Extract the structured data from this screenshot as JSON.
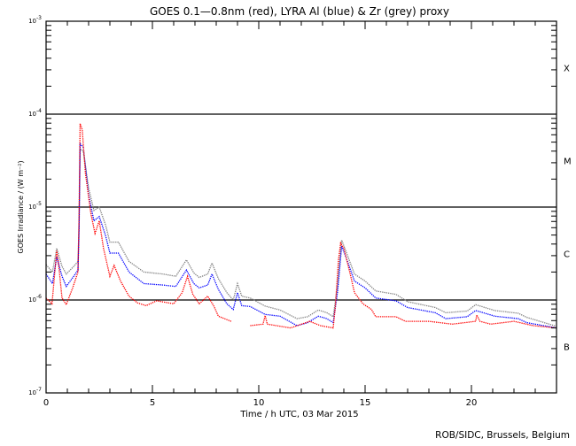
{
  "chart_data": {
    "type": "line",
    "title": "GOES 0.1—0.8nm (red), LYRA Al (blue) & Zr (grey) proxy",
    "xlabel": "Time / h UTC, 03 Mar 2015",
    "ylabel": "GOES Irradiance / (W m⁻²)",
    "xlim": [
      0,
      24
    ],
    "ylim": [
      1e-07,
      0.001
    ],
    "yscale": "log",
    "x_ticks": [
      0,
      5,
      10,
      15,
      20
    ],
    "x_tick_labels": [
      "0",
      "5",
      "10",
      "15",
      "20"
    ],
    "y_ticks": [
      {
        "base": "10",
        "exp": "-3"
      },
      {
        "base": "10",
        "exp": "-4"
      },
      {
        "base": "10",
        "exp": "-5"
      },
      {
        "base": "10",
        "exp": "-6"
      },
      {
        "base": "10",
        "exp": "-7"
      }
    ],
    "reference_lines": [
      0.0001,
      1e-05,
      1e-06
    ],
    "flare_classes": [
      {
        "label": "X",
        "value": 0.000316
      },
      {
        "label": "M",
        "value": 3.16e-05
      },
      {
        "label": "C",
        "value": 3.16e-06
      },
      {
        "label": "B",
        "value": 3.16e-07
      }
    ],
    "series": [
      {
        "name": "GOES 0.1-0.8nm",
        "color": "#ff0000",
        "segments": [
          [
            [
              0,
              1.05e-06
            ],
            [
              0.28,
              9.1e-07
            ],
            [
              0.5,
              3.4e-06
            ],
            [
              0.6,
              2.3e-06
            ],
            [
              0.75,
              1.05e-06
            ],
            [
              0.95,
              8.9e-07
            ],
            [
              1.25,
              1.35e-06
            ],
            [
              1.5,
              2e-06
            ],
            [
              1.55,
              7.6e-06
            ],
            [
              1.6,
              7.9e-05
            ],
            [
              1.7,
              6.8e-05
            ],
            [
              1.85,
              2.3e-05
            ],
            [
              2.1,
              8.7e-06
            ],
            [
              2.3,
              5.2e-06
            ],
            [
              2.5,
              7.1e-06
            ],
            [
              2.7,
              3.6e-06
            ],
            [
              3.0,
              1.8e-06
            ],
            [
              3.2,
              2.35e-06
            ],
            [
              3.5,
              1.6e-06
            ],
            [
              3.9,
              1.1e-06
            ],
            [
              4.3,
              9.3e-07
            ],
            [
              4.7,
              8.7e-07
            ],
            [
              5.2,
              9.8e-07
            ],
            [
              6.0,
              9.1e-07
            ],
            [
              6.4,
              1.2e-06
            ],
            [
              6.65,
              1.8e-06
            ],
            [
              6.9,
              1.15e-06
            ],
            [
              7.2,
              9.1e-07
            ],
            [
              7.6,
              1.1e-06
            ],
            [
              7.9,
              8.5e-07
            ],
            [
              8.1,
              6.7e-07
            ],
            [
              8.7,
              5.9e-07
            ]
          ],
          [
            [
              9.6,
              5.3e-07
            ],
            [
              10.2,
              5.5e-07
            ],
            [
              10.3,
              6.8e-07
            ],
            [
              10.4,
              5.5e-07
            ],
            [
              11.5,
              5e-07
            ],
            [
              12.4,
              5.9e-07
            ],
            [
              12.9,
              5.3e-07
            ],
            [
              13.5,
              5e-07
            ],
            [
              13.6,
              8.5e-07
            ],
            [
              13.75,
              2.7e-06
            ],
            [
              13.85,
              4.1e-06
            ],
            [
              14.0,
              3.6e-06
            ],
            [
              14.3,
              1.9e-06
            ],
            [
              14.5,
              1.2e-06
            ],
            [
              14.9,
              9.1e-07
            ],
            [
              15.3,
              7.9e-07
            ],
            [
              15.5,
              6.6e-07
            ],
            [
              15.9,
              6.6e-07
            ],
            [
              16.45,
              6.6e-07
            ],
            [
              16.9,
              5.9e-07
            ],
            [
              18.0,
              5.9e-07
            ],
            [
              19.1,
              5.5e-07
            ],
            [
              20.2,
              5.9e-07
            ],
            [
              20.25,
              6.9e-07
            ],
            [
              20.4,
              5.9e-07
            ],
            [
              20.9,
              5.5e-07
            ],
            [
              22.0,
              5.9e-07
            ],
            [
              22.9,
              5.3e-07
            ],
            [
              24,
              5e-07
            ]
          ]
        ]
      },
      {
        "name": "LYRA Al proxy",
        "color": "#0000ff",
        "segments": [
          [
            [
              0,
              1.9e-06
            ],
            [
              0.3,
              1.5e-06
            ],
            [
              0.5,
              2.9e-06
            ],
            [
              0.75,
              1.8e-06
            ],
            [
              0.95,
              1.4e-06
            ],
            [
              1.3,
              1.8e-06
            ],
            [
              1.5,
              2.1e-06
            ],
            [
              1.55,
              5.2e-06
            ],
            [
              1.6,
              4.8e-05
            ],
            [
              1.75,
              4.4e-05
            ],
            [
              2.0,
              1.35e-05
            ],
            [
              2.25,
              7.1e-06
            ],
            [
              2.5,
              7.9e-06
            ],
            [
              2.8,
              4.9e-06
            ],
            [
              3.0,
              3.2e-06
            ],
            [
              3.4,
              3.2e-06
            ],
            [
              3.9,
              2e-06
            ],
            [
              4.6,
              1.5e-06
            ],
            [
              5.5,
              1.45e-06
            ],
            [
              6.1,
              1.4e-06
            ],
            [
              6.6,
              2.1e-06
            ],
            [
              6.95,
              1.5e-06
            ],
            [
              7.2,
              1.35e-06
            ],
            [
              7.6,
              1.45e-06
            ],
            [
              7.8,
              1.9e-06
            ],
            [
              8.1,
              1.3e-06
            ],
            [
              8.5,
              9.1e-07
            ],
            [
              8.8,
              7.9e-07
            ],
            [
              9.0,
              1.2e-06
            ],
            [
              9.2,
              8.7e-07
            ],
            [
              9.6,
              8.5e-07
            ],
            [
              10.3,
              7e-07
            ],
            [
              11.0,
              6.7e-07
            ],
            [
              11.8,
              5.3e-07
            ],
            [
              12.3,
              5.7e-07
            ],
            [
              12.8,
              6.7e-07
            ],
            [
              13.2,
              6.3e-07
            ],
            [
              13.5,
              5.7e-07
            ],
            [
              13.7,
              1.2e-06
            ],
            [
              13.9,
              3.8e-06
            ],
            [
              14.2,
              2.5e-06
            ],
            [
              14.5,
              1.6e-06
            ],
            [
              15.0,
              1.35e-06
            ],
            [
              15.5,
              1.05e-06
            ],
            [
              16.45,
              9.8e-07
            ],
            [
              17.0,
              8.3e-07
            ],
            [
              18.3,
              7.3e-07
            ],
            [
              18.8,
              6.3e-07
            ],
            [
              19.8,
              6.6e-07
            ],
            [
              20.2,
              7.7e-07
            ],
            [
              21.1,
              6.7e-07
            ],
            [
              22.2,
              6.3e-07
            ],
            [
              22.6,
              5.7e-07
            ],
            [
              24,
              5e-07
            ]
          ]
        ]
      },
      {
        "name": "LYRA Zr proxy",
        "color": "#808080",
        "segments": [
          [
            [
              0,
              2.4e-06
            ],
            [
              0.3,
              2e-06
            ],
            [
              0.5,
              3.6e-06
            ],
            [
              0.75,
              2.3e-06
            ],
            [
              0.95,
              1.9e-06
            ],
            [
              1.3,
              2.3e-06
            ],
            [
              1.5,
              2.6e-06
            ],
            [
              1.55,
              6.5e-06
            ],
            [
              1.6,
              4.2e-05
            ],
            [
              1.75,
              4e-05
            ],
            [
              2.0,
              1.6e-05
            ],
            [
              2.25,
              9.2e-06
            ],
            [
              2.5,
              1e-05
            ],
            [
              2.8,
              6.4e-06
            ],
            [
              3.0,
              4.2e-06
            ],
            [
              3.4,
              4.2e-06
            ],
            [
              3.9,
              2.6e-06
            ],
            [
              4.6,
              2e-06
            ],
            [
              5.5,
              1.9e-06
            ],
            [
              6.1,
              1.8e-06
            ],
            [
              6.6,
              2.7e-06
            ],
            [
              6.95,
              1.95e-06
            ],
            [
              7.2,
              1.75e-06
            ],
            [
              7.6,
              1.9e-06
            ],
            [
              7.8,
              2.5e-06
            ],
            [
              8.1,
              1.7e-06
            ],
            [
              8.5,
              1.2e-06
            ],
            [
              8.8,
              1e-06
            ],
            [
              9.0,
              1.5e-06
            ],
            [
              9.2,
              1.1e-06
            ],
            [
              9.6,
              1.05e-06
            ],
            [
              10.3,
              8.6e-07
            ],
            [
              11.0,
              7.8e-07
            ],
            [
              11.8,
              6.3e-07
            ],
            [
              12.3,
              6.6e-07
            ],
            [
              12.8,
              7.8e-07
            ],
            [
              13.2,
              7.3e-07
            ],
            [
              13.5,
              6.6e-07
            ],
            [
              13.7,
              1.4e-06
            ],
            [
              13.9,
              4.4e-06
            ],
            [
              14.2,
              2.9e-06
            ],
            [
              14.5,
              1.9e-06
            ],
            [
              15.0,
              1.6e-06
            ],
            [
              15.5,
              1.25e-06
            ],
            [
              16.45,
              1.15e-06
            ],
            [
              17.0,
              9.6e-07
            ],
            [
              18.3,
              8.3e-07
            ],
            [
              18.8,
              7.3e-07
            ],
            [
              19.8,
              7.6e-07
            ],
            [
              20.2,
              8.9e-07
            ],
            [
              21.1,
              7.7e-07
            ],
            [
              22.2,
              7.2e-07
            ],
            [
              22.6,
              6.5e-07
            ],
            [
              24,
              5.2e-07
            ]
          ]
        ]
      }
    ]
  },
  "credit": "ROB/SIDC, Brussels, Belgium"
}
